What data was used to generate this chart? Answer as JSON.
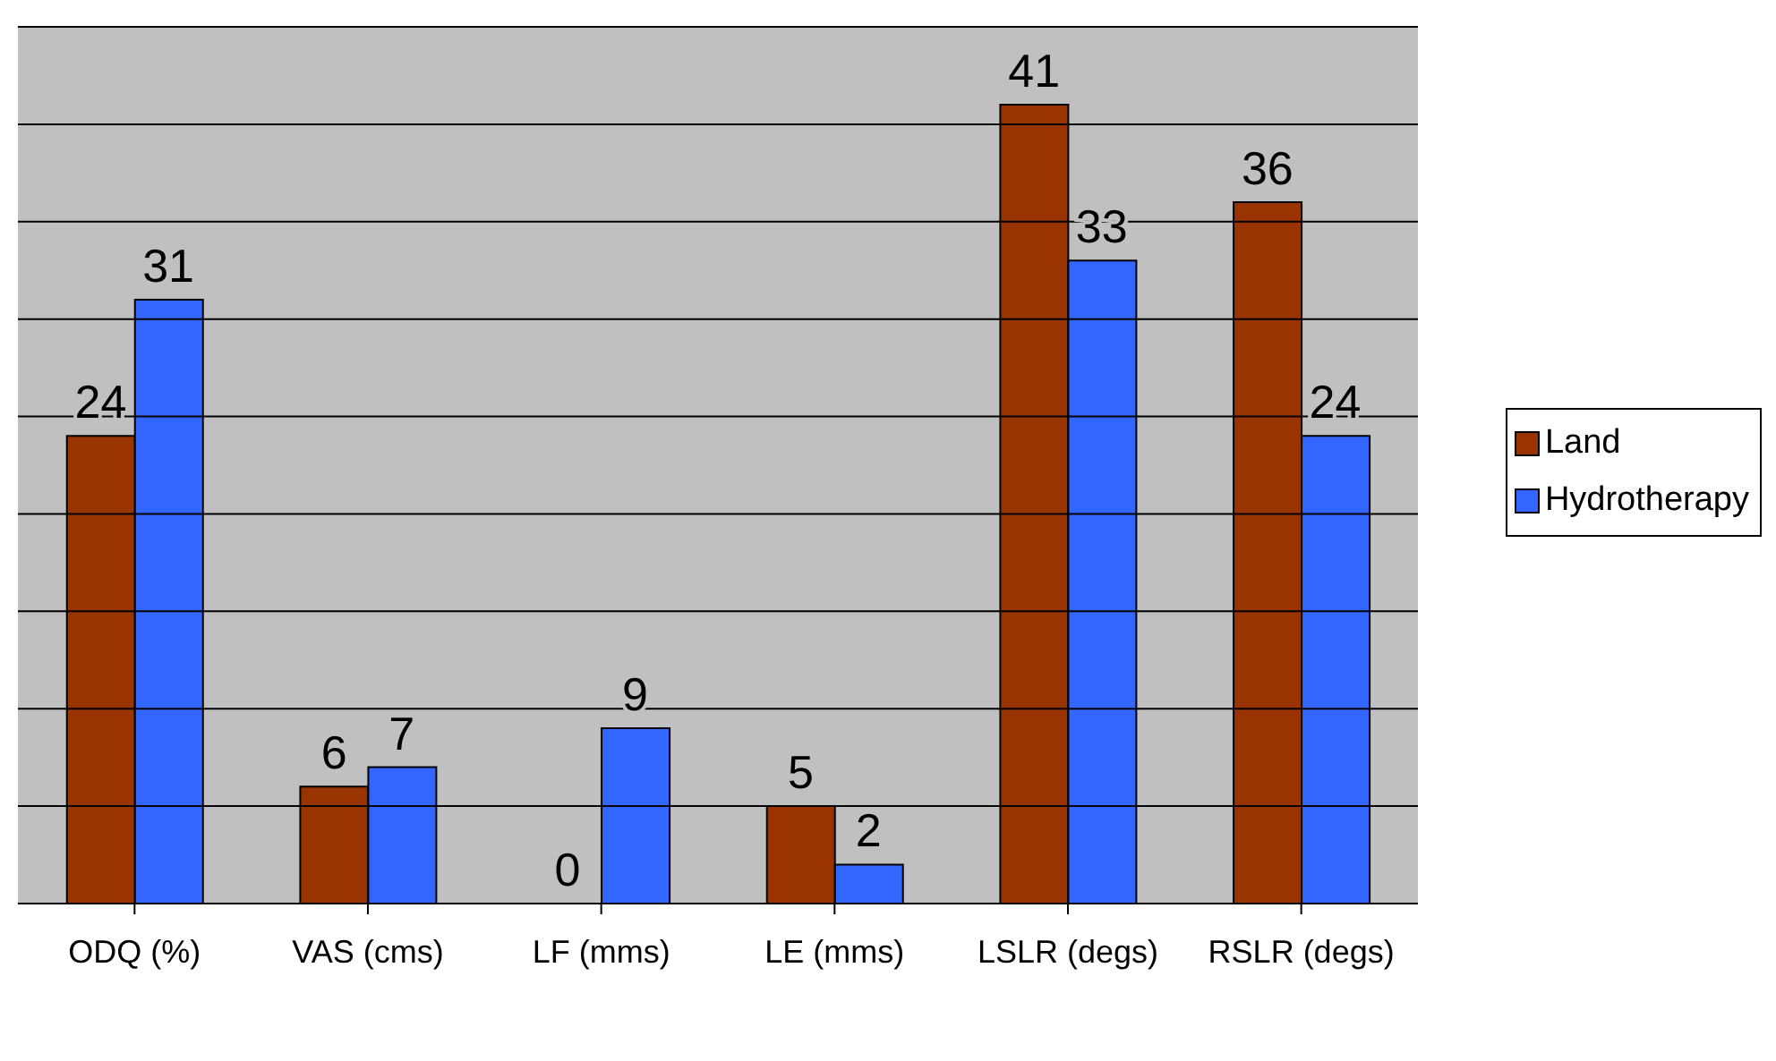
{
  "chart_data": {
    "type": "bar",
    "categories": [
      "ODQ (%)",
      "VAS (cms)",
      "LF (mms)",
      "LE (mms)",
      "LSLR (degs)",
      "RSLR (degs)"
    ],
    "series": [
      {
        "name": "Land",
        "color": "#993300",
        "values": [
          24,
          6,
          0,
          5,
          41,
          36
        ]
      },
      {
        "name": "Hydrotherapy",
        "color": "#3366ff",
        "values": [
          31,
          7,
          9,
          2,
          33,
          24
        ]
      }
    ],
    "ylim": [
      0,
      45
    ],
    "yticks": [
      {
        "value": 0,
        "label": null
      },
      {
        "value": 5,
        "label": null
      },
      {
        "value": 10,
        "label": null
      },
      {
        "value": 15,
        "label": null
      },
      {
        "value": 20,
        "label": null
      },
      {
        "value": 25,
        "label": null
      },
      {
        "value": 30,
        "label": null
      },
      {
        "value": 35,
        "label": null
      },
      {
        "value": 40,
        "label": null
      },
      {
        "value": 45,
        "label": null
      }
    ],
    "tick_labels": "x",
    "grid": "y",
    "legend": "right",
    "data_labels": true
  }
}
